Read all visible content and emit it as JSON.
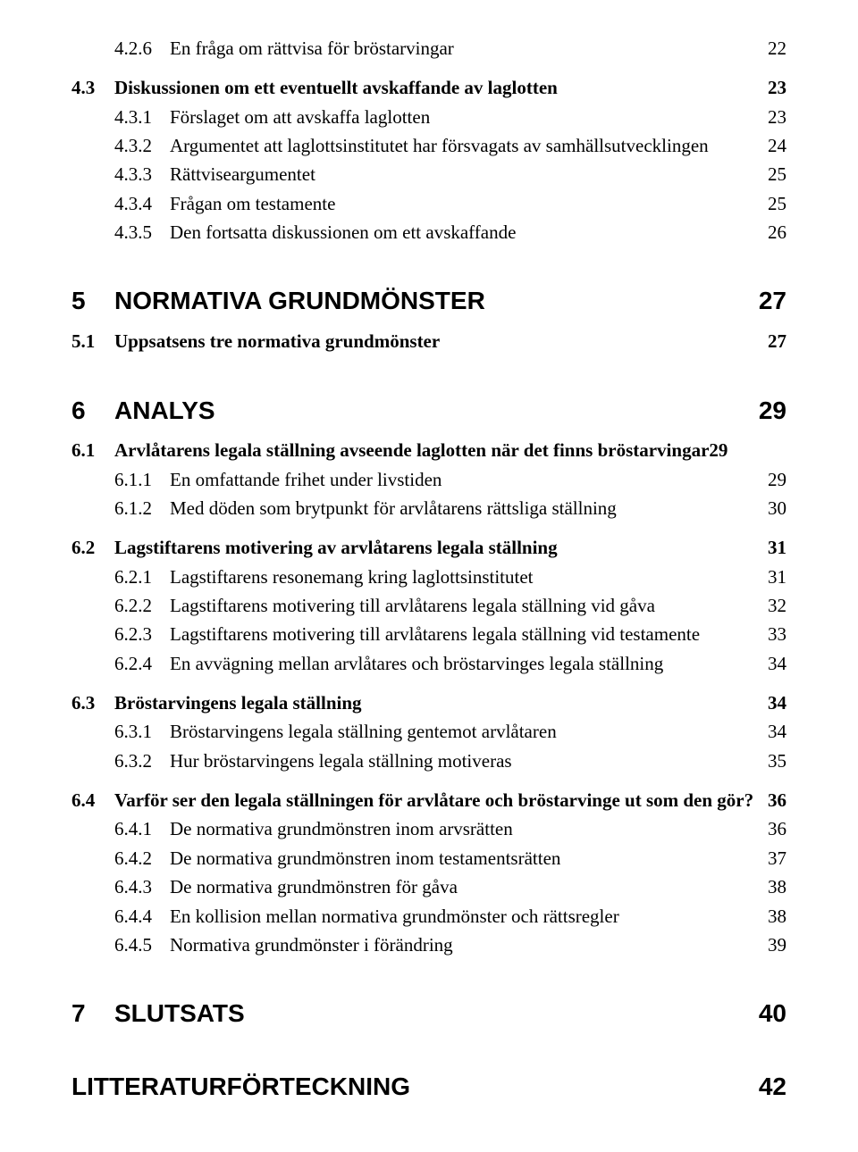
{
  "entries": [
    {
      "level": "sub",
      "num": "4.2.6",
      "text": "En fråga om rättvisa för bröstarvingar",
      "page": "22"
    },
    {
      "level": "secb",
      "num": "4.3",
      "text": "Diskussionen om ett eventuellt avskaffande av laglotten",
      "page": "23",
      "gap": true
    },
    {
      "level": "sub",
      "num": "4.3.1",
      "text": "Förslaget om att avskaffa laglotten",
      "page": "23"
    },
    {
      "level": "sub",
      "num": "4.3.2",
      "text": "Argumentet att laglottsinstitutet har försvagats av samhällsutvecklingen",
      "page": "24"
    },
    {
      "level": "sub",
      "num": "4.3.3",
      "text": "Rättviseargumentet",
      "page": "25"
    },
    {
      "level": "sub",
      "num": "4.3.4",
      "text": "Frågan om testamente",
      "page": "25"
    },
    {
      "level": "sub",
      "num": "4.3.5",
      "text": "Den fortsatta diskussionen om ett avskaffande",
      "page": "26"
    },
    {
      "level": "chap",
      "num": "5",
      "text": "NORMATIVA GRUNDMÖNSTER",
      "page": "27"
    },
    {
      "level": "secb",
      "num": "5.1",
      "text": "Uppsatsens tre normativa grundmönster",
      "page": "27"
    },
    {
      "level": "chap",
      "num": "6",
      "text": "ANALYS",
      "page": "29"
    },
    {
      "level": "secb",
      "num": "6.1",
      "text": "Arvlåtarens legala ställning avseende laglotten när det finns bröstarvingar",
      "page": "29",
      "tight": true
    },
    {
      "level": "sub",
      "num": "6.1.1",
      "text": "En omfattande frihet under livstiden",
      "page": "29"
    },
    {
      "level": "sub",
      "num": "6.1.2",
      "text": "Med döden som brytpunkt för arvlåtarens rättsliga ställning",
      "page": "30"
    },
    {
      "level": "secb",
      "num": "6.2",
      "text": "Lagstiftarens motivering av arvlåtarens legala ställning",
      "page": "31",
      "gap": true
    },
    {
      "level": "sub",
      "num": "6.2.1",
      "text": "Lagstiftarens resonemang kring laglottsinstitutet",
      "page": "31"
    },
    {
      "level": "sub",
      "num": "6.2.2",
      "text": "Lagstiftarens motivering till arvlåtarens legala ställning vid gåva",
      "page": "32"
    },
    {
      "level": "sub",
      "num": "6.2.3",
      "text": "Lagstiftarens motivering till arvlåtarens legala ställning vid testamente",
      "page": "33"
    },
    {
      "level": "sub",
      "num": "6.2.4",
      "text": "En avvägning mellan arvlåtares och bröstarvinges legala ställning",
      "page": "34"
    },
    {
      "level": "secb",
      "num": "6.3",
      "text": "Bröstarvingens legala ställning",
      "page": "34",
      "gap": true
    },
    {
      "level": "sub",
      "num": "6.3.1",
      "text": "Bröstarvingens legala ställning gentemot arvlåtaren",
      "page": "34"
    },
    {
      "level": "sub",
      "num": "6.3.2",
      "text": "Hur bröstarvingens legala ställning motiveras",
      "page": "35"
    },
    {
      "level": "secb",
      "num": "6.4",
      "text": "Varför ser den legala ställningen för arvlåtare och bröstarvinge ut som den gör?",
      "page": "36",
      "gap": true
    },
    {
      "level": "sub",
      "num": "6.4.1",
      "text": "De normativa grundmönstren inom arvsrätten",
      "page": "36"
    },
    {
      "level": "sub",
      "num": "6.4.2",
      "text": "De normativa grundmönstren inom testamentsrätten",
      "page": "37"
    },
    {
      "level": "sub",
      "num": "6.4.3",
      "text": "De normativa grundmönstren för gåva",
      "page": "38"
    },
    {
      "level": "sub",
      "num": "6.4.4",
      "text": "En kollision mellan normativa grundmönster och rättsregler",
      "page": "38"
    },
    {
      "level": "sub",
      "num": "6.4.5",
      "text": "Normativa grundmönster i förändring",
      "page": "39"
    },
    {
      "level": "chap",
      "num": "7",
      "text": "SLUTSATS",
      "page": "40"
    },
    {
      "level": "nonum",
      "num": "",
      "text": "LITTERATURFÖRTECKNING",
      "page": "42"
    }
  ]
}
